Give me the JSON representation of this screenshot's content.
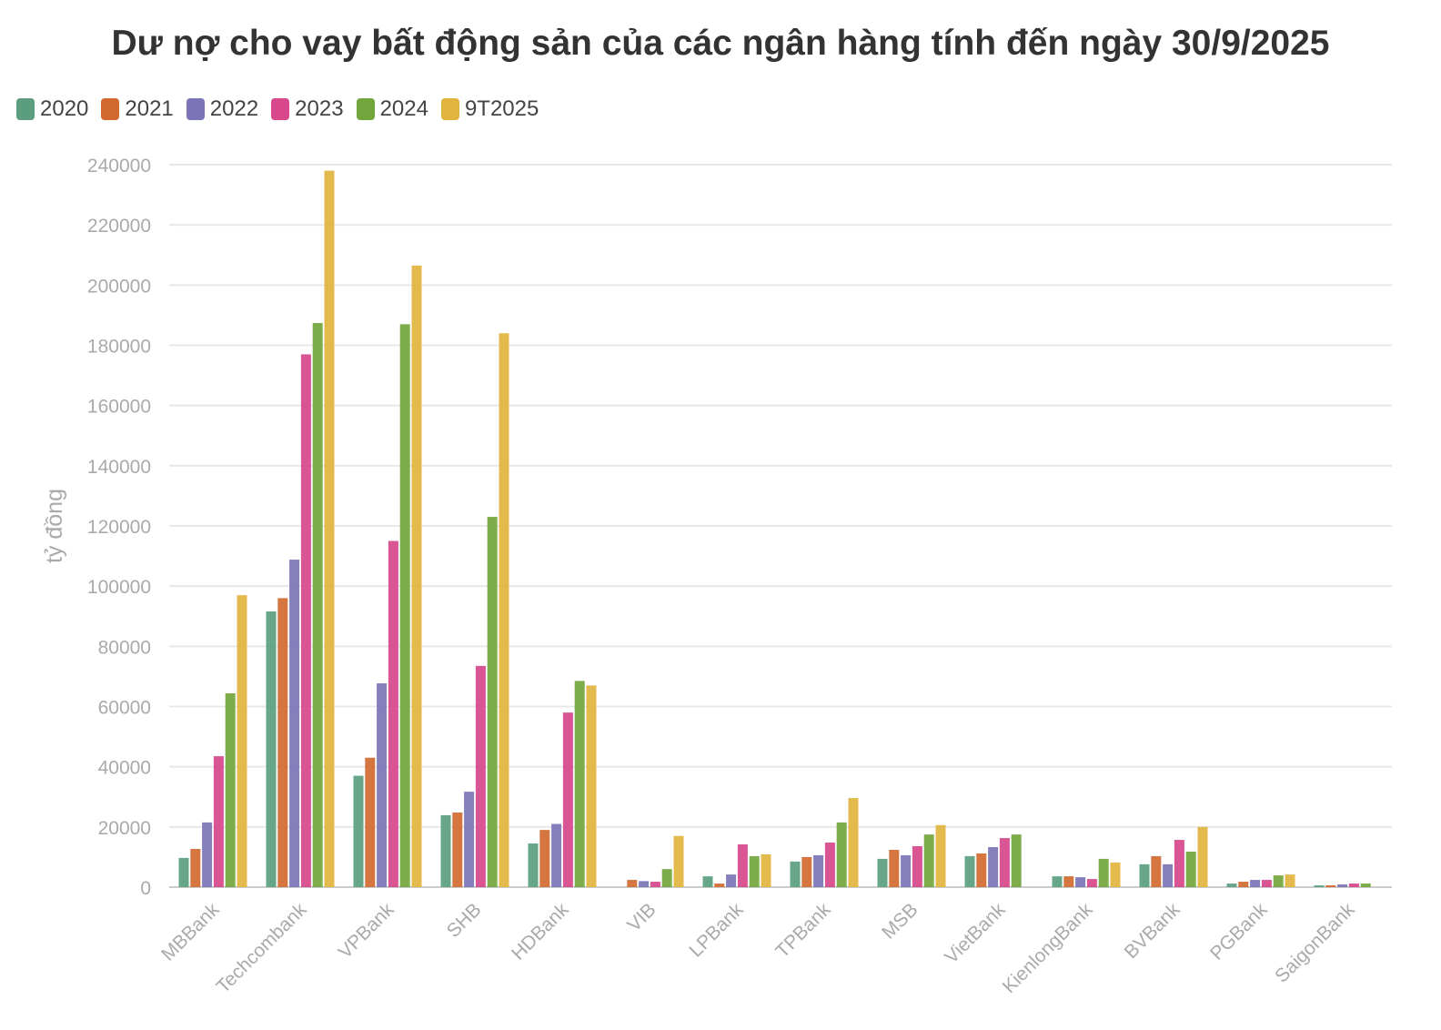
{
  "chart_data": {
    "type": "bar",
    "title": "Dư nợ cho vay bất động sản của các ngân hàng tính đến ngày 30/9/2025",
    "xlabel": "",
    "ylabel": "tỷ đồng",
    "ylim": [
      0,
      240000
    ],
    "yticks": [
      0,
      20000,
      40000,
      60000,
      80000,
      100000,
      120000,
      140000,
      160000,
      180000,
      200000,
      220000,
      240000
    ],
    "grid": true,
    "legend_position": "top-left",
    "categories": [
      "MBBank",
      "Techcombank",
      "VPBank",
      "SHB",
      "HDBank",
      "VIB",
      "LPBank",
      "TPBank",
      "MSB",
      "VietBank",
      "KienlongBank",
      "BVBank",
      "PGBank",
      "SaigonBank"
    ],
    "series": [
      {
        "name": "2020",
        "color": "#5a9e7f",
        "values": [
          9700,
          91600,
          37000,
          23900,
          14500,
          null,
          3600,
          8500,
          9400,
          10300,
          3600,
          7600,
          1200,
          600
        ]
      },
      {
        "name": "2021",
        "color": "#d1692f",
        "values": [
          12700,
          96000,
          43000,
          24800,
          19000,
          2400,
          1200,
          10000,
          12400,
          11200,
          3600,
          10300,
          1800,
          600
        ]
      },
      {
        "name": "2022",
        "color": "#7b74b6",
        "values": [
          21500,
          108800,
          67700,
          31700,
          21000,
          2000,
          4200,
          10600,
          10600,
          13300,
          3300,
          7600,
          2400,
          900
        ]
      },
      {
        "name": "2023",
        "color": "#d7478a",
        "values": [
          43500,
          177000,
          115000,
          73500,
          58000,
          1800,
          14200,
          14800,
          13600,
          16300,
          2700,
          15700,
          2400,
          1200
        ]
      },
      {
        "name": "2024",
        "color": "#72a63c",
        "values": [
          64400,
          187400,
          187000,
          123000,
          68500,
          6000,
          10300,
          21500,
          17500,
          17500,
          9400,
          11800,
          3900,
          1200
        ]
      },
      {
        "name": "9T2025",
        "color": "#e1b43f",
        "values": [
          97000,
          238000,
          206500,
          184000,
          67000,
          17000,
          10900,
          29600,
          20600,
          null,
          8200,
          20000,
          4200,
          null
        ]
      }
    ]
  }
}
